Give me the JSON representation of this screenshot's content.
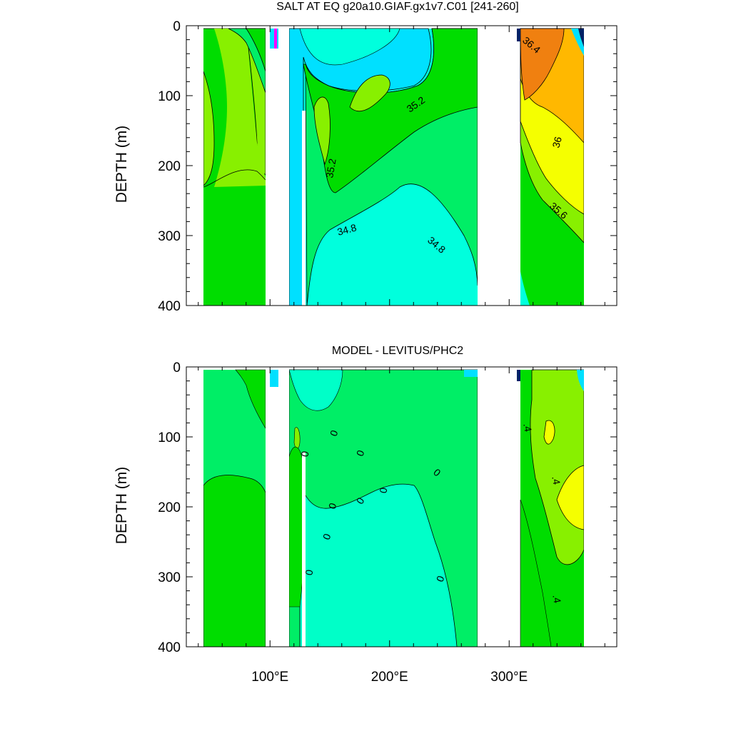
{
  "chart_data": [
    {
      "type": "contour",
      "title": "SALT AT EQ g20a10.GIAF.gx1v7.C01 [241-260]",
      "ylabel": "DEPTH (m)",
      "ylim": [
        0,
        400
      ],
      "y_reversed": true,
      "y_ticks": [
        "0",
        "100",
        "200",
        "300",
        "400"
      ],
      "x_ticks": [
        "100°E",
        "200°E",
        "300°E"
      ],
      "xlim": [
        30,
        390
      ],
      "contour_labels": [
        "36.4",
        "35.2",
        "35.2",
        "36",
        "35.6",
        "34.8",
        "34.8"
      ],
      "colors": {
        "freshest": "#00FFDD",
        "fresh": "#00E0FF",
        "mid_low": "#00EE66",
        "mid": "#00DD00",
        "mid_high": "#88F000",
        "salty": "#F5FF00",
        "saltier": "#FFB800",
        "saltiest": "#F08010",
        "extreme": "#002266",
        "anomaly_magenta": "#FF00FF"
      }
    },
    {
      "type": "contour",
      "title": "MODEL - LEVITUS/PHC2",
      "ylabel": "DEPTH (m)",
      "ylim": [
        0,
        400
      ],
      "y_reversed": true,
      "y_ticks": [
        "0",
        "100",
        "200",
        "300",
        "400"
      ],
      "x_ticks": [
        "100°E",
        "200°E",
        "300°E"
      ],
      "xlim": [
        30,
        390
      ],
      "contour_labels": [
        "0",
        "0",
        "0",
        "0",
        "0",
        "0",
        "0",
        "0",
        "0",
        "0",
        ".4",
        ".4",
        ".4"
      ],
      "colors": {
        "negative": "#00FFC8",
        "near_zero": "#00EE66",
        "positive_small": "#00DD00",
        "positive_mid": "#88F000",
        "positive_high": "#F5FF00",
        "negative_strong": "#00E0FF"
      }
    }
  ]
}
